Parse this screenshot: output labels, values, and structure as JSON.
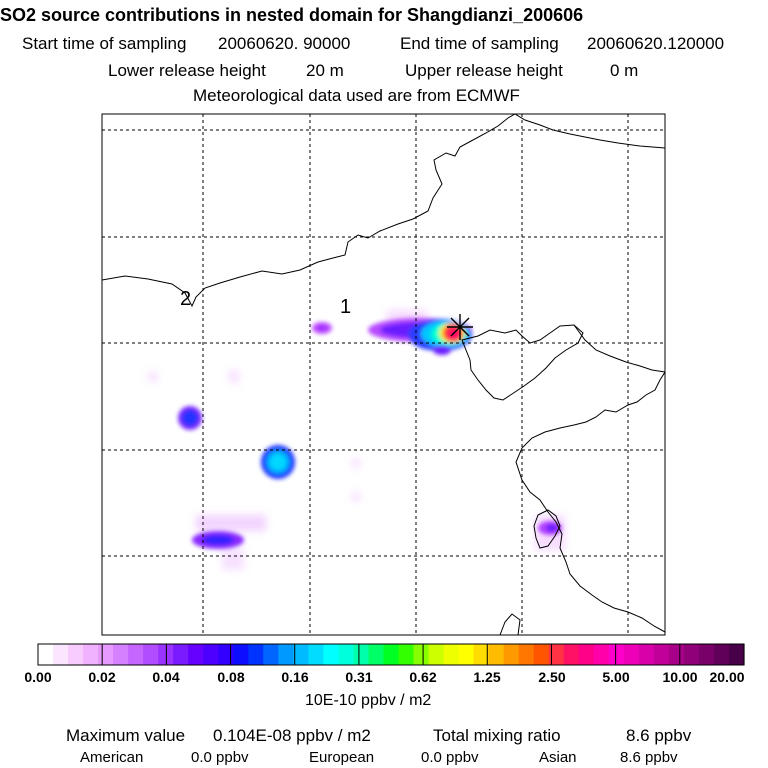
{
  "header": {
    "title": "SO2 source contributions in nested domain for Shangdianzi_200606",
    "start_label": "Start time of sampling",
    "start_value": "20060620. 90000",
    "end_label": "End time of sampling",
    "end_value": "20060620.120000",
    "lower_label": "Lower release height",
    "lower_value": "20 m",
    "upper_label": "Upper release height",
    "upper_value": "0 m",
    "met_note": "Meteorological data used are from ECMWF"
  },
  "map": {
    "region_labels": [
      "2",
      "1"
    ],
    "colors": {
      "map_frame": "#000000",
      "grid": "#000000",
      "coast": "#000000",
      "station_marker": "#000000"
    }
  },
  "colorbar": {
    "labels": [
      "0.00",
      "0.02",
      "0.04",
      "0.08",
      "0.16",
      "0.31",
      "0.62",
      "1.25",
      "2.50",
      "5.00",
      "10.00",
      "20.00"
    ],
    "colors": [
      "#ffffff",
      "#fce6ff",
      "#f8ccff",
      "#f0b2ff",
      "#e699ff",
      "#d580ff",
      "#c466ff",
      "#b24dff",
      "#9933ff",
      "#7a1aff",
      "#6600ff",
      "#4d00ff",
      "#3300ff",
      "#0d0dff",
      "#0033ff",
      "#0066ff",
      "#0099ff",
      "#00bbff",
      "#00ddff",
      "#00ffff",
      "#00ffdd",
      "#00ffaa",
      "#00ff66",
      "#00ff22",
      "#33ff00",
      "#88ff00",
      "#ccff00",
      "#eeff00",
      "#ffff00",
      "#ffdd00",
      "#ffbb00",
      "#ff9900",
      "#ff7700",
      "#ff5500",
      "#ff3344",
      "#ff1166",
      "#ff0088",
      "#ff00aa",
      "#ff00cc",
      "#ee00b8",
      "#d800a8",
      "#c00098",
      "#a80088",
      "#900078",
      "#780068",
      "#600058",
      "#480048"
    ],
    "units": "10E-10 ppbv / m2"
  },
  "footer": {
    "max_label": "Maximum value",
    "max_value": "0.104E-08 ppbv / m2",
    "total_label": "Total mixing ratio",
    "total_value": "8.6 ppbv",
    "american_label": "American",
    "american_value": "0.0 ppbv",
    "european_label": "European",
    "european_value": "0.0 ppbv",
    "asian_label": "Asian",
    "asian_value": "8.6 ppbv"
  }
}
